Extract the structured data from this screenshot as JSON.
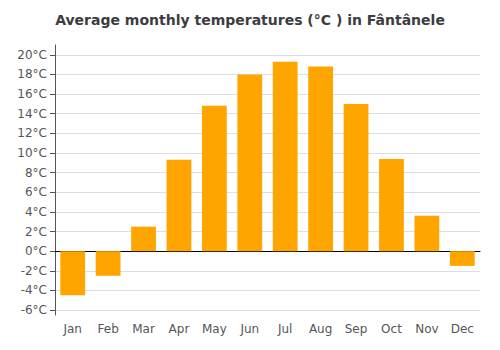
{
  "chart_data": {
    "type": "bar",
    "title": "Average monthly temperatures (°C ) in Fântânele",
    "categories": [
      "Jan",
      "Feb",
      "Mar",
      "Apr",
      "May",
      "Jun",
      "Jul",
      "Aug",
      "Sep",
      "Oct",
      "Nov",
      "Dec"
    ],
    "values": [
      -4.5,
      -2.5,
      2.5,
      9.3,
      14.8,
      18.0,
      19.3,
      18.8,
      15.0,
      9.4,
      3.6,
      -1.5
    ],
    "color": "#FFA500",
    "ylim": [
      -6.5,
      21
    ],
    "yticks": [
      {
        "value": -6,
        "label": "-6°C"
      },
      {
        "value": -4,
        "label": "-4°C"
      },
      {
        "value": -2,
        "label": "-2°C"
      },
      {
        "value": 0,
        "label": "0°C"
      },
      {
        "value": 2,
        "label": "2°C"
      },
      {
        "value": 4,
        "label": "4°C"
      },
      {
        "value": 6,
        "label": "6°C"
      },
      {
        "value": 8,
        "label": "8°C"
      },
      {
        "value": 10,
        "label": "10°C"
      },
      {
        "value": 12,
        "label": "12°C"
      },
      {
        "value": 14,
        "label": "14°C"
      },
      {
        "value": 16,
        "label": "16°C"
      },
      {
        "value": 18,
        "label": "18°C"
      },
      {
        "value": 20,
        "label": "20°C"
      }
    ],
    "grid": true
  }
}
